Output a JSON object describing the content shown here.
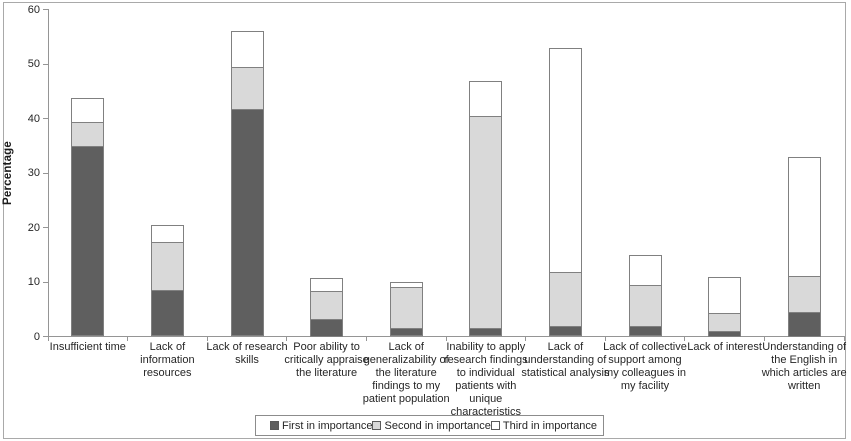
{
  "chart_data": {
    "type": "bar",
    "stacked": true,
    "title": "",
    "xlabel": "",
    "ylabel": "Percentage",
    "ylim": [
      0,
      60
    ],
    "yticks": [
      0,
      10,
      20,
      30,
      40,
      50,
      60
    ],
    "grid": false,
    "legend_position": "bottom",
    "categories": [
      "Insufficient  time",
      "Lack of\ninformation\nresources",
      "Lack of research\nskills",
      "Poor ability to\ncritically appraise\nthe literature",
      "Lack of\ngeneralizability of\nthe literature\nfindings to my\npatient population",
      "Inability to apply\nresearch findings\nto individual\npatients with\nunique\ncharacteristics",
      "Lack of\nunderstanding of\nstatistical analysis",
      "Lack of collective\nsupport among\nmy colleagues in\nmy facility",
      "Lack of interest",
      "Understanding of\nthe English in\nwhich articles are\nwritten"
    ],
    "series": [
      {
        "name": "First in importance",
        "color": "#5f5f5f",
        "values": [
          34.9,
          8.5,
          41.8,
          3.3,
          1.5,
          1.5,
          2.0,
          2.0,
          1.0,
          4.5
        ]
      },
      {
        "name": "Second in importance",
        "color": "#d9d9d9",
        "values": [
          4.4,
          8.8,
          7.7,
          5.0,
          7.6,
          39.0,
          9.9,
          7.4,
          3.4,
          6.6
        ]
      },
      {
        "name": "Third in importance",
        "color": "#ffffff",
        "values": [
          4.4,
          3.2,
          6.5,
          2.4,
          1.0,
          6.4,
          41.0,
          5.6,
          6.6,
          21.9
        ]
      }
    ]
  },
  "colors": {
    "segment_border": "#808080",
    "axis": "#959595",
    "figure_border": "#a9a9a9",
    "text": "#262626"
  }
}
